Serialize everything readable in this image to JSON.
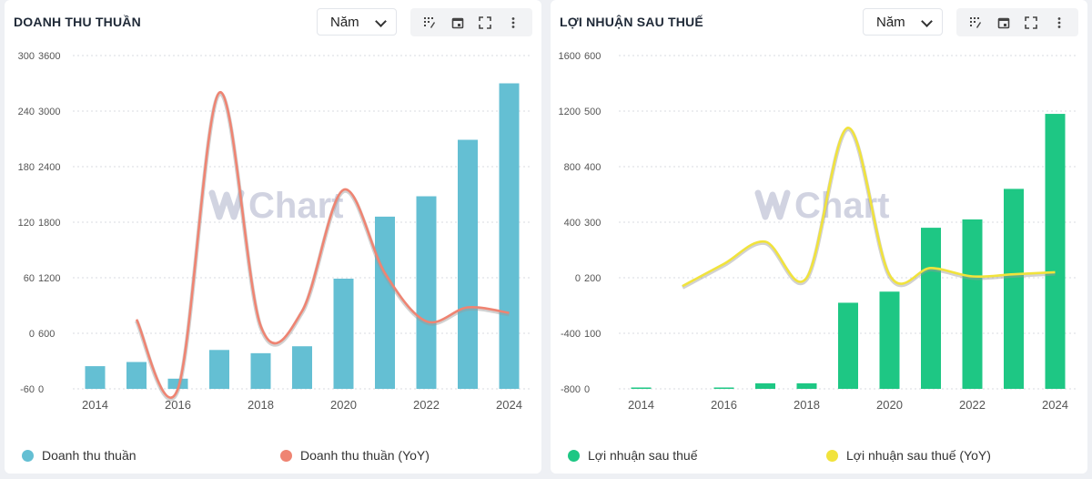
{
  "brand_watermark": "Chart",
  "period_options": [
    "Năm"
  ],
  "panels": [
    {
      "id": "revenue",
      "title": "DOANH THU THUẦN",
      "period": "Năm",
      "bar_color": "#64bfd3",
      "line_color": "#ef8472",
      "legend": [
        "Doanh thu thuần",
        "Doanh thu thuần (YoY)"
      ]
    },
    {
      "id": "profit",
      "title": "LỢI NHUẬN SAU THUẾ",
      "period": "Năm",
      "bar_color": "#1ec784",
      "line_color": "#f1e33c",
      "legend": [
        "Lợi nhuận sau thuế",
        "Lợi nhuận sau thuế (YoY)"
      ]
    }
  ],
  "chart_data": [
    {
      "type": "bar",
      "title": "DOANH THU THUẦN",
      "x": [
        2014,
        2015,
        2016,
        2017,
        2018,
        2019,
        2020,
        2021,
        2022,
        2023,
        2024
      ],
      "x_tick_labels": [
        "2014",
        "2016",
        "2018",
        "2020",
        "2022",
        "2024"
      ],
      "y_left_ticks": [
        "300",
        "240",
        "180",
        "120",
        "60",
        "0",
        "-60"
      ],
      "y_right_ticks": [
        "3600",
        "3000",
        "2400",
        "1800",
        "1200",
        "600",
        "0"
      ],
      "y_left_range": [
        -60,
        300
      ],
      "y_right_range": [
        0,
        3600
      ],
      "series": [
        {
          "name": "Doanh thu thuần",
          "type": "bar",
          "axis": "right",
          "values": [
            245,
            290,
            110,
            420,
            385,
            460,
            1190,
            1860,
            2080,
            2690,
            3300
          ]
        },
        {
          "name": "Doanh thu thuần (YoY)",
          "type": "line",
          "axis": "left",
          "values": [
            null,
            15,
            -60,
            260,
            8,
            24,
            155,
            65,
            13,
            28,
            22
          ]
        }
      ],
      "legend_position": "bottom",
      "grid": true
    },
    {
      "type": "bar",
      "title": "LỢI NHUẬN SAU THUẾ",
      "x": [
        2014,
        2015,
        2016,
        2017,
        2018,
        2019,
        2020,
        2021,
        2022,
        2023,
        2024
      ],
      "x_tick_labels": [
        "2014",
        "2016",
        "2018",
        "2020",
        "2022",
        "2024"
      ],
      "y_left_ticks": [
        "1600",
        "1200",
        "800",
        "400",
        "0",
        "-400",
        "-800"
      ],
      "y_right_ticks": [
        "600",
        "500",
        "400",
        "300",
        "200",
        "100",
        "0"
      ],
      "y_left_range": [
        -800,
        1600
      ],
      "y_right_range": [
        0,
        600
      ],
      "series": [
        {
          "name": "Lợi nhuận sau thuế",
          "type": "bar",
          "axis": "right",
          "values": [
            2,
            null,
            2,
            10,
            10,
            155,
            175,
            290,
            305,
            360,
            495
          ]
        },
        {
          "name": "Lợi nhuận sau thuế (YoY)",
          "type": "line",
          "axis": "left",
          "values": [
            null,
            -60,
            100,
            260,
            0,
            1080,
            20,
            70,
            10,
            25,
            40
          ]
        }
      ],
      "legend_position": "bottom",
      "grid": true
    }
  ]
}
